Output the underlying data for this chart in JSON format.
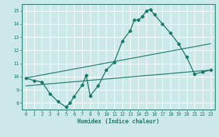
{
  "title": "",
  "xlabel": "Humidex (Indice chaleur)",
  "ylabel": "",
  "bg_color": "#cce8e8",
  "grid_color": "#ffffff",
  "line_color": "#1a7a6a",
  "xlim": [
    -0.5,
    23.5
  ],
  "ylim": [
    7.5,
    15.5
  ],
  "xticks": [
    0,
    1,
    2,
    3,
    4,
    5,
    6,
    7,
    8,
    9,
    10,
    11,
    12,
    13,
    14,
    15,
    16,
    17,
    18,
    19,
    20,
    21,
    22,
    23
  ],
  "yticks": [
    8,
    9,
    10,
    11,
    12,
    13,
    14,
    15
  ],
  "main_line_x": [
    0,
    1,
    2,
    3,
    4,
    5,
    5.5,
    6,
    7,
    7.5,
    8,
    9,
    10,
    11,
    12,
    13,
    13.5,
    14,
    14.5,
    15,
    15.5,
    16,
    17,
    18,
    19,
    20,
    21,
    22,
    23
  ],
  "main_line_y": [
    9.9,
    9.7,
    9.6,
    8.7,
    8.1,
    7.7,
    8.0,
    8.5,
    9.35,
    10.1,
    8.55,
    9.3,
    10.5,
    11.1,
    12.7,
    13.5,
    14.3,
    14.3,
    14.55,
    15.0,
    15.1,
    14.7,
    14.0,
    13.3,
    12.5,
    11.5,
    10.2,
    10.35,
    10.5
  ],
  "line2_x": [
    0,
    23
  ],
  "line2_y": [
    9.9,
    12.5
  ],
  "line3_x": [
    0,
    23
  ],
  "line3_y": [
    9.3,
    10.5
  ]
}
